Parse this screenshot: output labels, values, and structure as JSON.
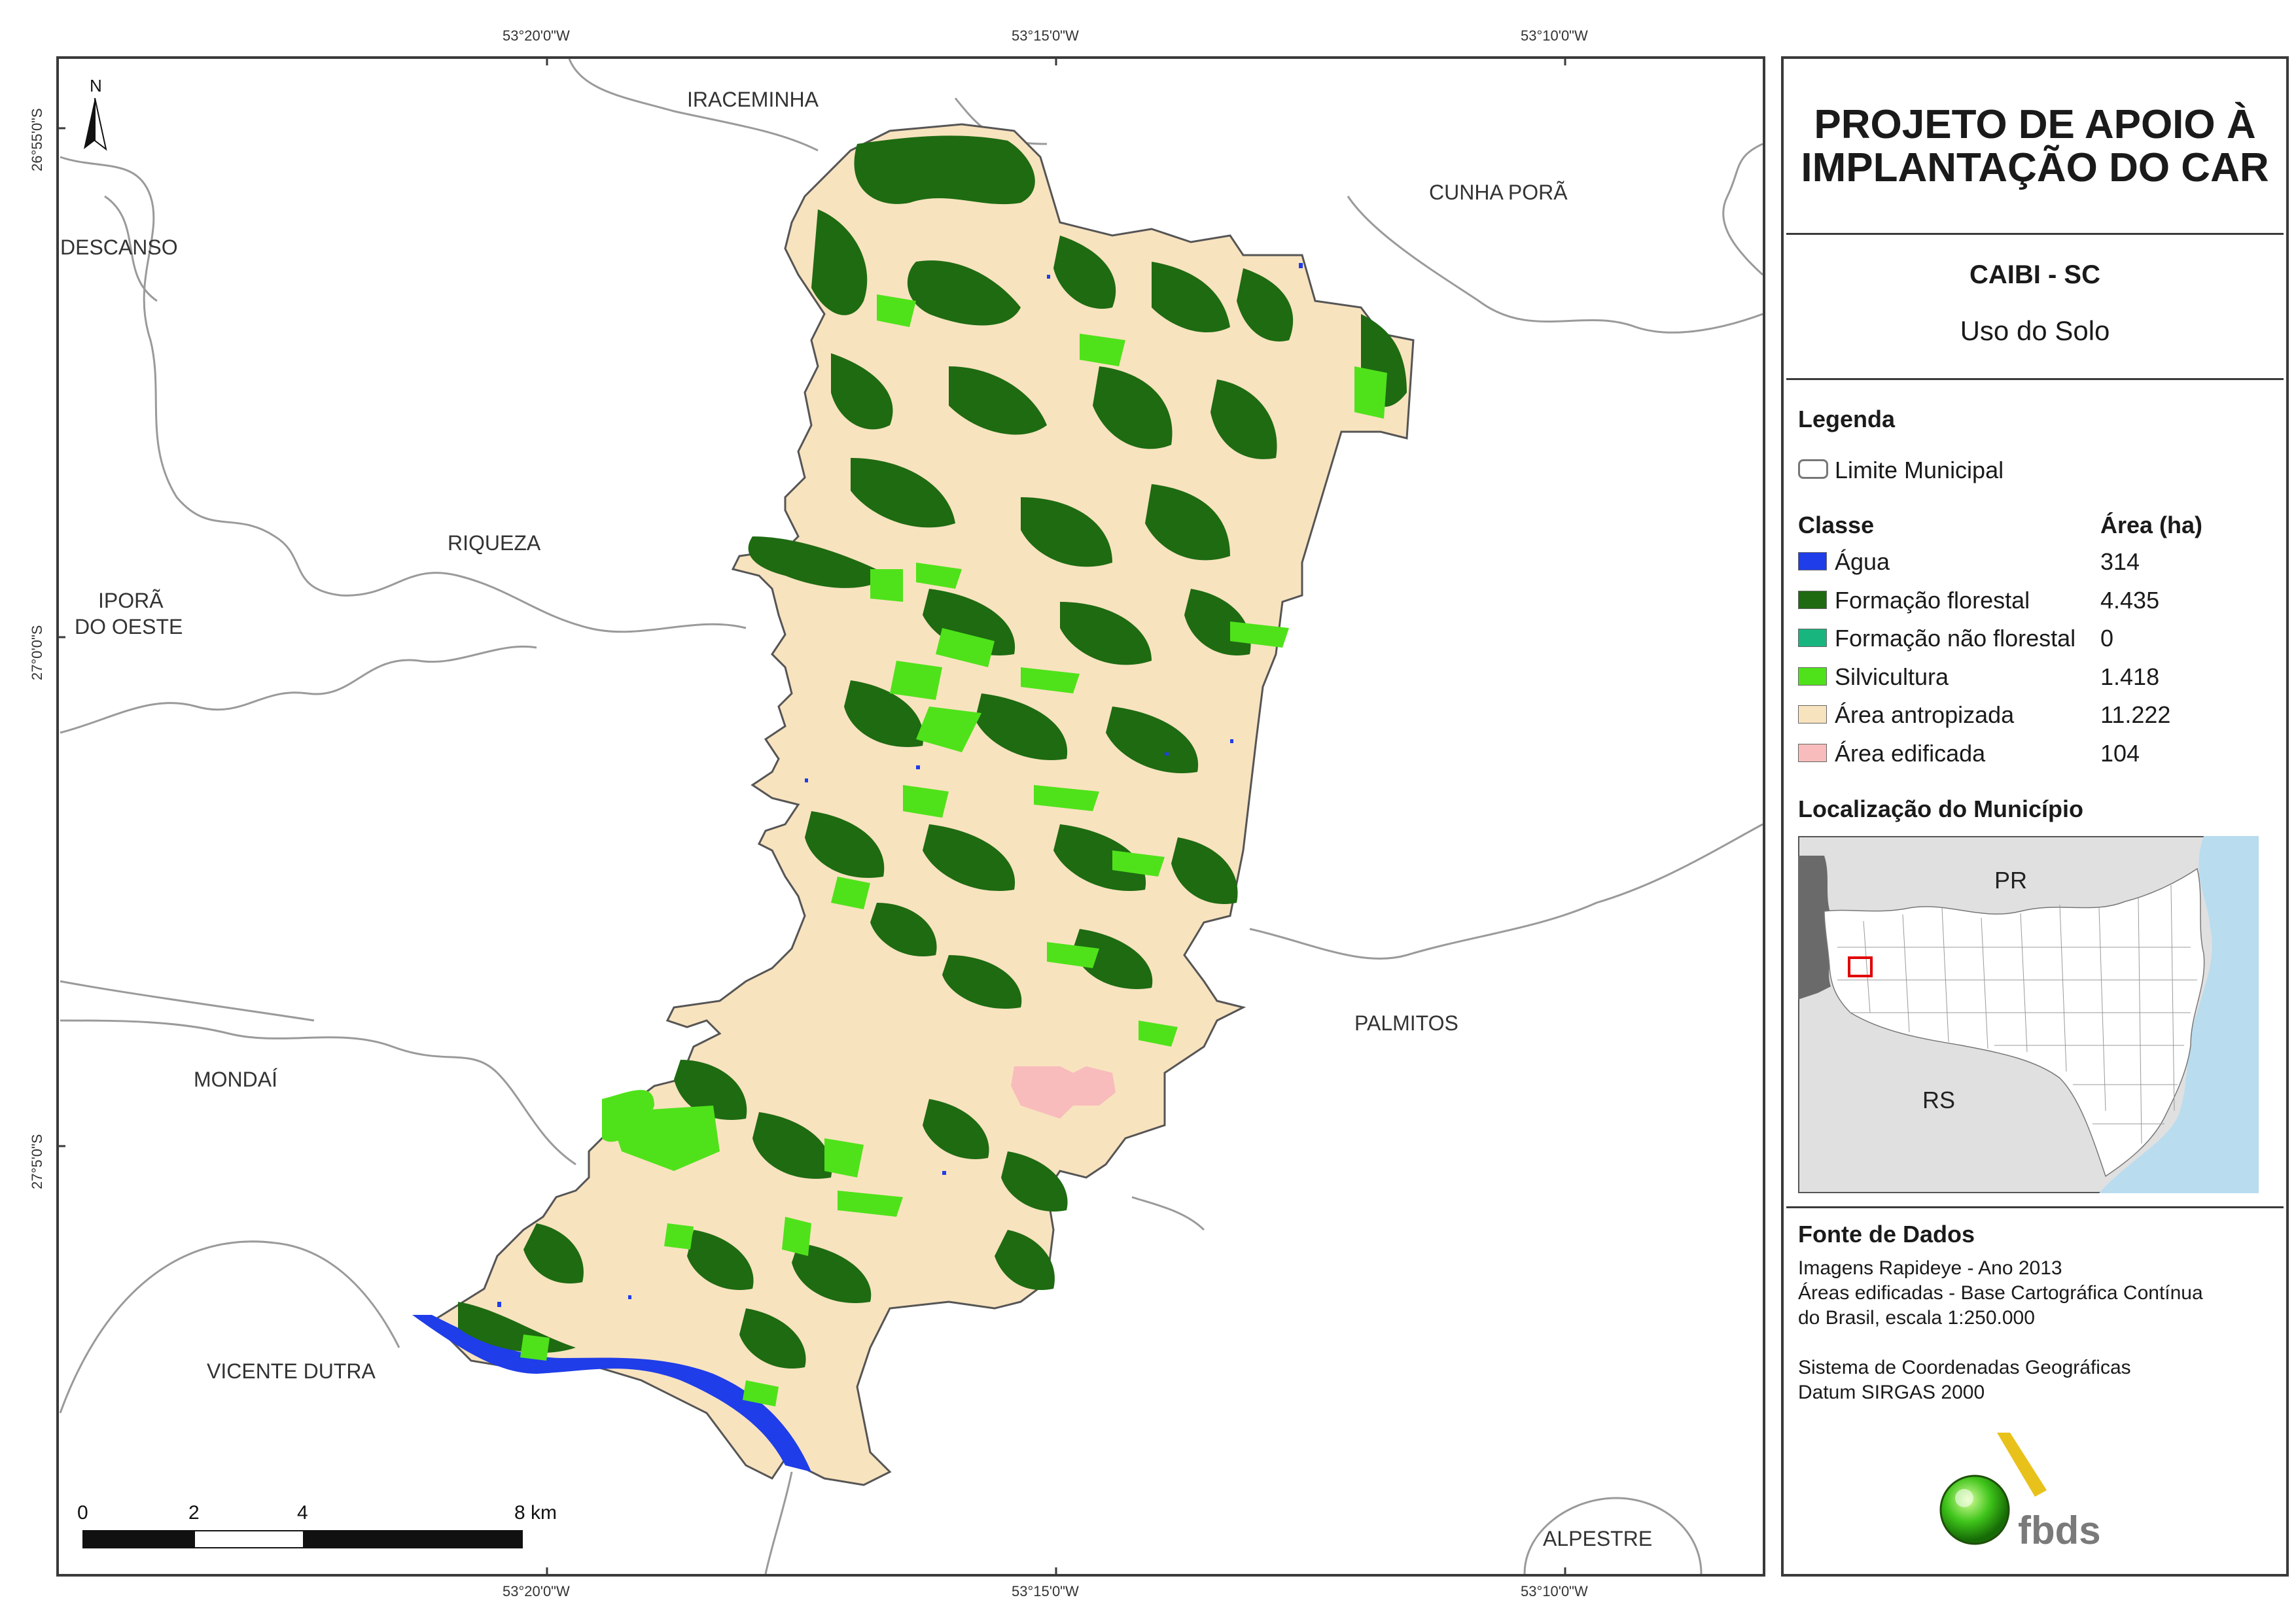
{
  "title": {
    "line1": "PROJETO DE APOIO À",
    "line2": "IMPLANTAÇÃO DO CAR"
  },
  "subtitle": {
    "municipality": "CAIBI - SC",
    "theme": "Uso do Solo"
  },
  "legend": {
    "heading": "Legenda",
    "boundary_label": "Limite Municipal",
    "class_header": "Classe",
    "area_header": "Área (ha)",
    "classes": [
      {
        "label": "Água",
        "area": "314",
        "color": "#1f3de8"
      },
      {
        "label": "Formação florestal",
        "area": "4.435",
        "color": "#1e6b12"
      },
      {
        "label": "Formação não florestal",
        "area": "0",
        "color": "#19b57f"
      },
      {
        "label": "Silvicultura",
        "area": "1.418",
        "color": "#4fe21a"
      },
      {
        "label": "Área antropizada",
        "area": "11.222",
        "color": "#f8e3bf"
      },
      {
        "label": "Área edificada",
        "area": "104",
        "color": "#f8bcbc"
      }
    ]
  },
  "locator": {
    "heading": "Localização do Município",
    "labels": {
      "north": "PR",
      "south": "RS"
    }
  },
  "data_source": {
    "heading": "Fonte de Dados",
    "lines": [
      "Imagens Rapideye - Ano 2013",
      "Áreas edificadas - Base Cartográfica Contínua",
      "do Brasil, escala 1:250.000",
      "Sistema de Coordenadas Geográficas",
      "Datum SIRGAS 2000"
    ]
  },
  "logo": {
    "text": "fbds"
  },
  "coordinates": {
    "top": [
      "53°20'0\"W",
      "53°15'0\"W",
      "53°10'0\"W"
    ],
    "bottom": [
      "53°20'0\"W",
      "53°15'0\"W",
      "53°10'0\"W"
    ],
    "left": [
      "26°55'0\"S",
      "27°0'0\"S",
      "27°5'0\"S"
    ]
  },
  "places": {
    "iraceminha": "IRACEMINHA",
    "cunha_pora": "CUNHA PORÃ",
    "descanso": "DESCANSO",
    "riqueza": "RIQUEZA",
    "ipora_1": "IPORÃ",
    "ipora_2": "DO OESTE",
    "mondai": "MONDAÍ",
    "palmitos": "PALMITOS",
    "vicente_dutra": "VICENTE DUTRA",
    "alpestre": "ALPESTRE"
  },
  "north_arrow": "N",
  "scale_bar": {
    "labels": [
      "0",
      "2",
      "4",
      "8 km"
    ]
  },
  "colors": {
    "frame": "#3a3a3a",
    "water": "#1f3de8",
    "forest": "#1e6b12",
    "silviculture": "#4fe21a",
    "anthropized": "#f8e3bf",
    "built": "#f8bcbc",
    "locator_bg": "#e0e0e0",
    "locator_sea": "#b9dcef"
  }
}
